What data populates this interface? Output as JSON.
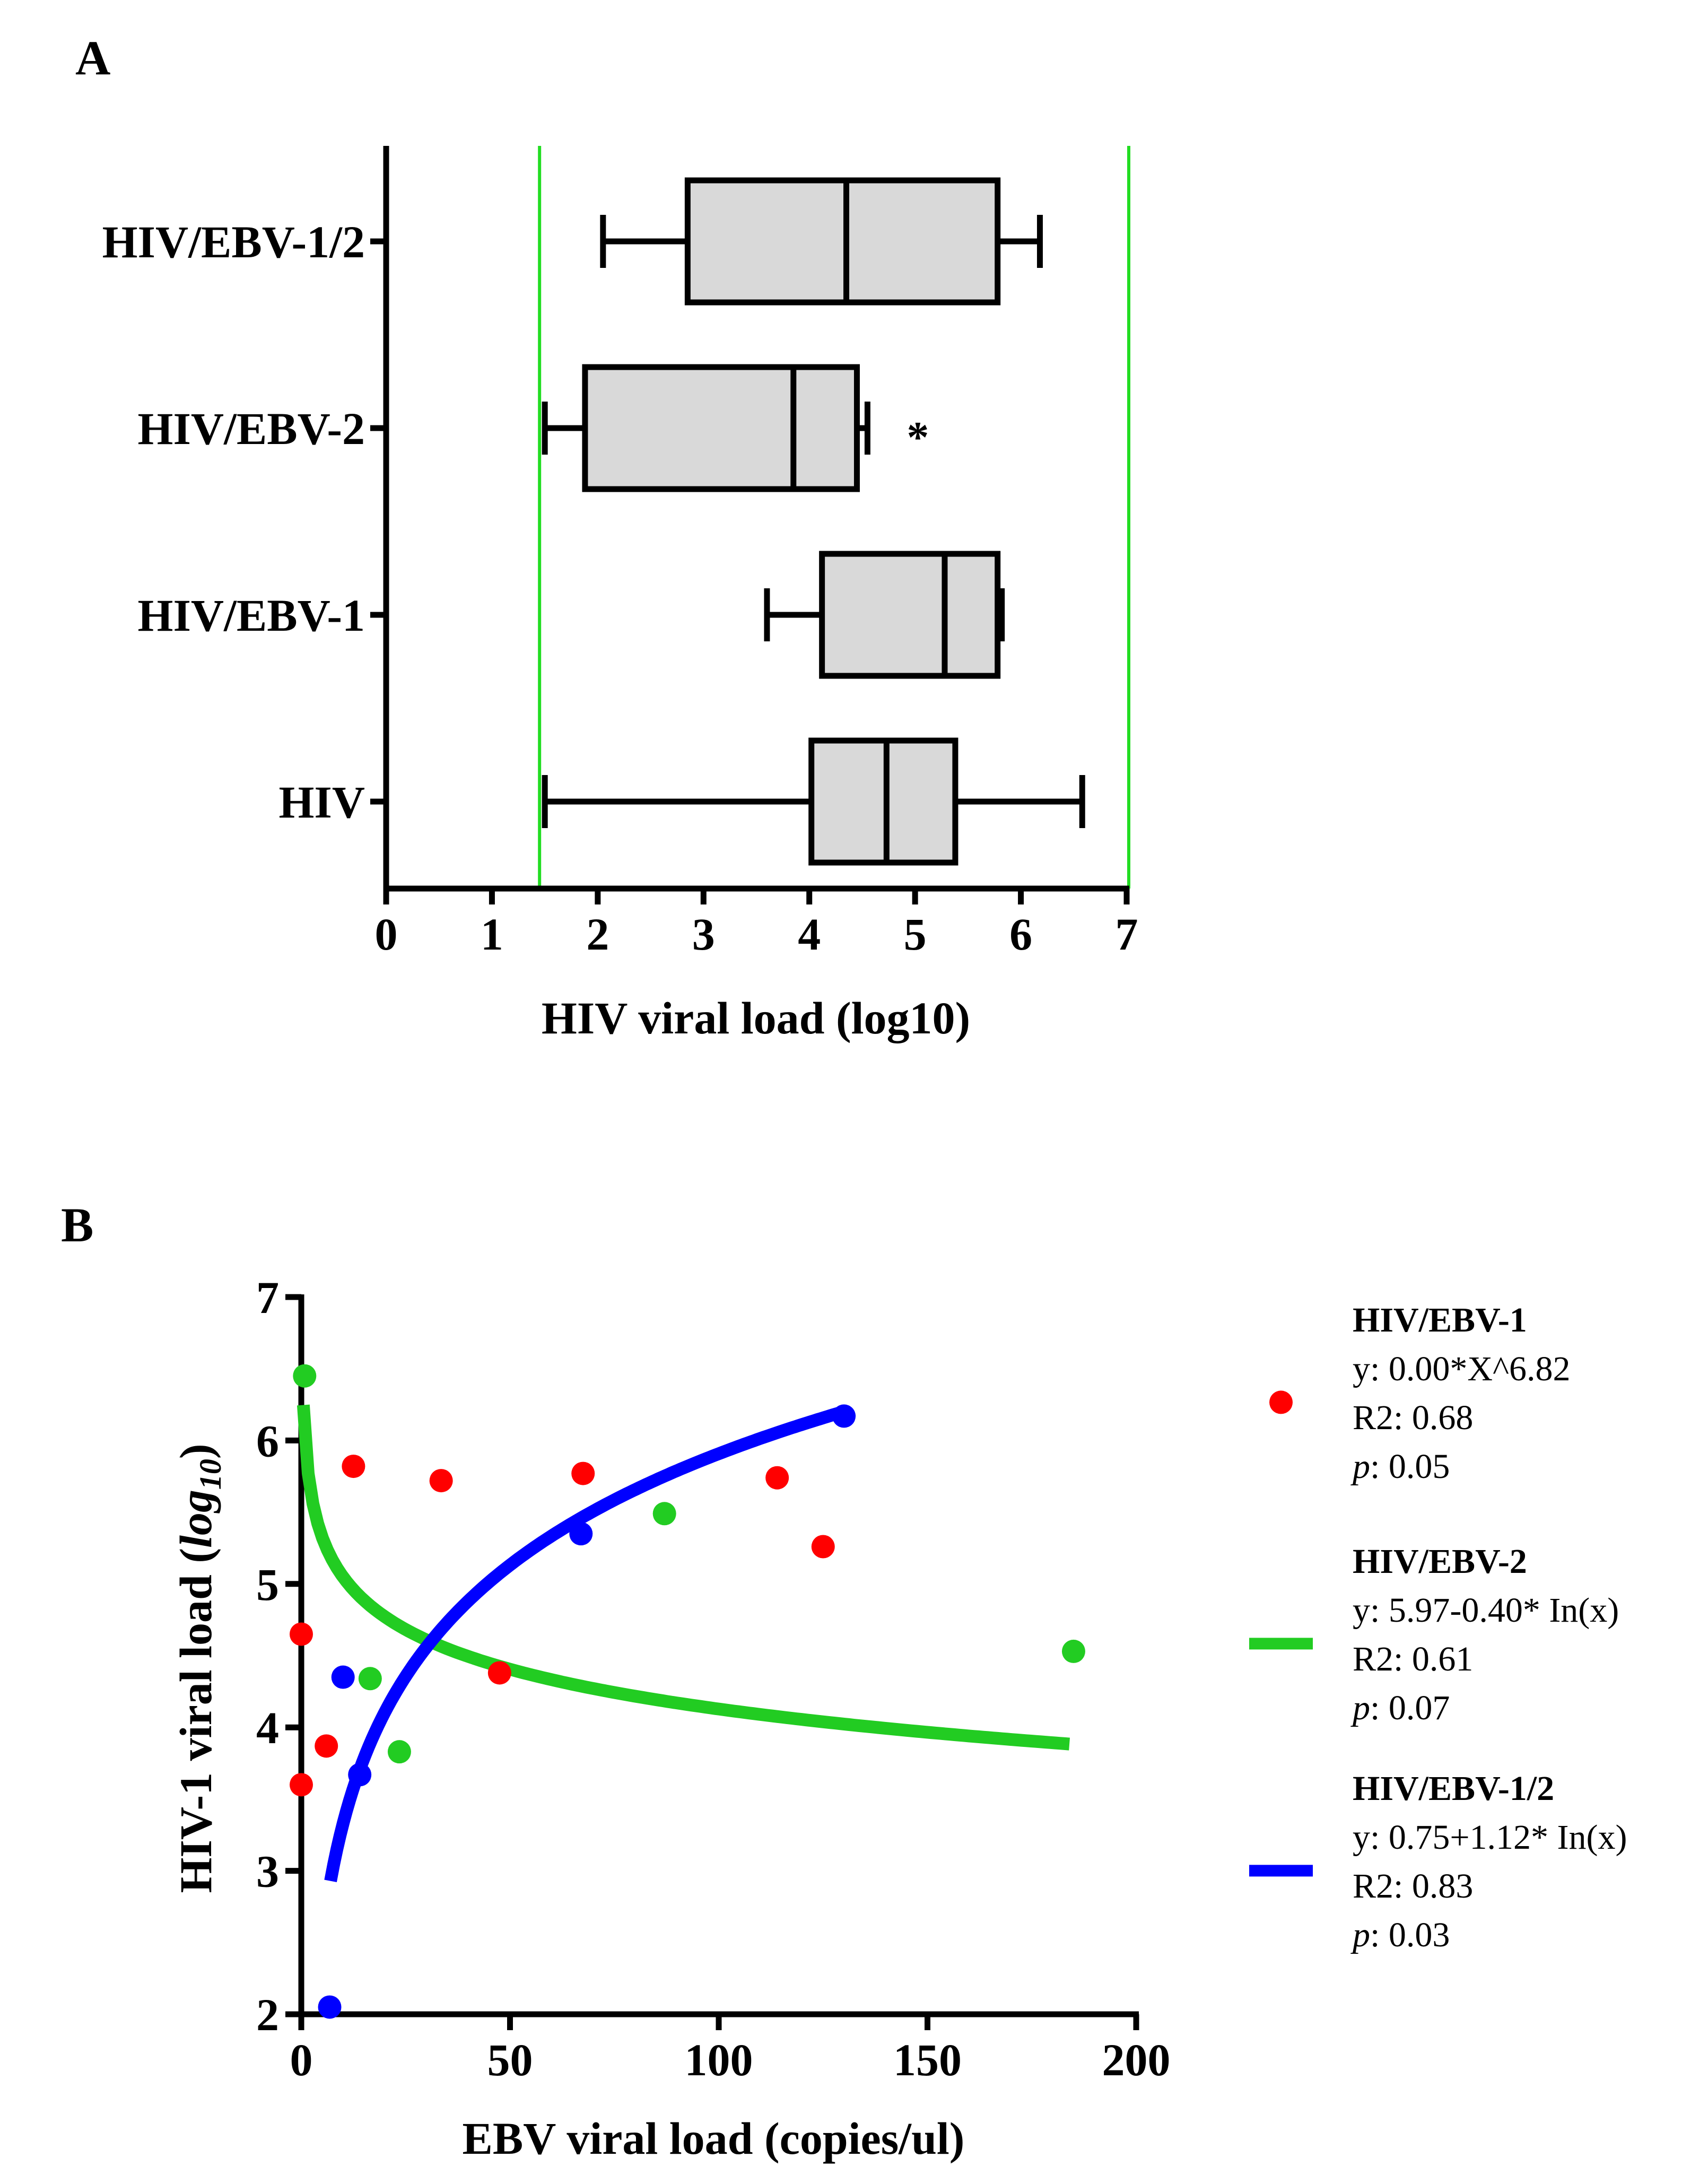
{
  "chart_data": [
    {
      "panel": "A",
      "type": "boxplot",
      "orientation": "horizontal",
      "xlabel": "HIV viral load (log10)",
      "xlim": [
        0,
        7
      ],
      "xticks": [
        "0",
        "1",
        "2",
        "3",
        "4",
        "5",
        "6",
        "7"
      ],
      "reference_lines": {
        "color": "#22dd22",
        "x": [
          1.45,
          7.02
        ]
      },
      "box_fill": "#d9d9d9",
      "groups": [
        {
          "label": "HIV/EBV-1/2",
          "whisker_low": 2.05,
          "q1": 2.85,
          "median": 4.35,
          "q3": 5.78,
          "whisker_high": 6.18,
          "annotation": ""
        },
        {
          "label": "HIV/EBV-2",
          "whisker_low": 1.5,
          "q1": 1.88,
          "median": 3.85,
          "q3": 4.45,
          "whisker_high": 4.55,
          "annotation": "*"
        },
        {
          "label": "HIV/EBV-1",
          "whisker_low": 3.6,
          "q1": 4.12,
          "median": 5.28,
          "q3": 5.78,
          "whisker_high": 5.82,
          "annotation": ""
        },
        {
          "label": "HIV",
          "whisker_low": 1.5,
          "q1": 4.02,
          "median": 4.73,
          "q3": 5.38,
          "whisker_high": 6.58,
          "annotation": ""
        }
      ]
    },
    {
      "panel": "B",
      "type": "scatter",
      "xlabel": "EBV viral load (copies/ul)",
      "ylabel_main": "HIV-1 viral load (",
      "ylabel_italic": "log",
      "ylabel_sub": "10",
      "ylabel_end": ")",
      "xlim": [
        0,
        200
      ],
      "ylim": [
        2,
        7
      ],
      "xticks": [
        "0",
        "50",
        "100",
        "150",
        "200"
      ],
      "yticks": [
        "2",
        "3",
        "4",
        "5",
        "6",
        "7"
      ],
      "series": [
        {
          "name": "HIV/EBV-1",
          "color": "#ff0000",
          "legend_marker": "dot",
          "equation": "y: 0.00*X^6.82",
          "r2": "R2: 0.68",
          "p_label": "p",
          "p_value": ": 0.05",
          "points": [
            [
              0,
              4.65
            ],
            [
              0,
              3.6
            ],
            [
              6,
              3.87
            ],
            [
              12.5,
              5.82
            ],
            [
              33.5,
              5.72
            ],
            [
              47.5,
              4.38
            ],
            [
              67.5,
              5.77
            ],
            [
              114,
              5.74
            ],
            [
              125,
              5.26
            ]
          ]
        },
        {
          "name": "HIV/EBV-2",
          "color": "#22cc22",
          "legend_marker": "line",
          "equation": "y: 5.97-0.40* In(x)",
          "r2": "R2: 0.61",
          "p_label": "p",
          "p_value": ": 0.07",
          "fit": {
            "model": "log",
            "a": 5.97,
            "b": -0.4,
            "x_from": 0.5,
            "x_to": 184
          },
          "points": [
            [
              0.8,
              6.45
            ],
            [
              16.5,
              4.34
            ],
            [
              23.5,
              3.83
            ],
            [
              87,
              5.49
            ],
            [
              185,
              4.53
            ]
          ]
        },
        {
          "name": "HIV/EBV-1/2",
          "color": "#0000ff",
          "legend_marker": "line",
          "equation": "y: 0.75+1.12* In(x)",
          "r2": "R2: 0.83",
          "p_label": "p",
          "p_value": ": 0.03",
          "fit": {
            "model": "log",
            "a": 0.75,
            "b": 1.12,
            "x_from": 7,
            "x_to": 129
          },
          "points": [
            [
              6.8,
              2.05
            ],
            [
              10,
              4.35
            ],
            [
              14,
              3.67
            ],
            [
              67,
              5.35
            ],
            [
              130,
              6.17
            ]
          ]
        }
      ]
    }
  ]
}
